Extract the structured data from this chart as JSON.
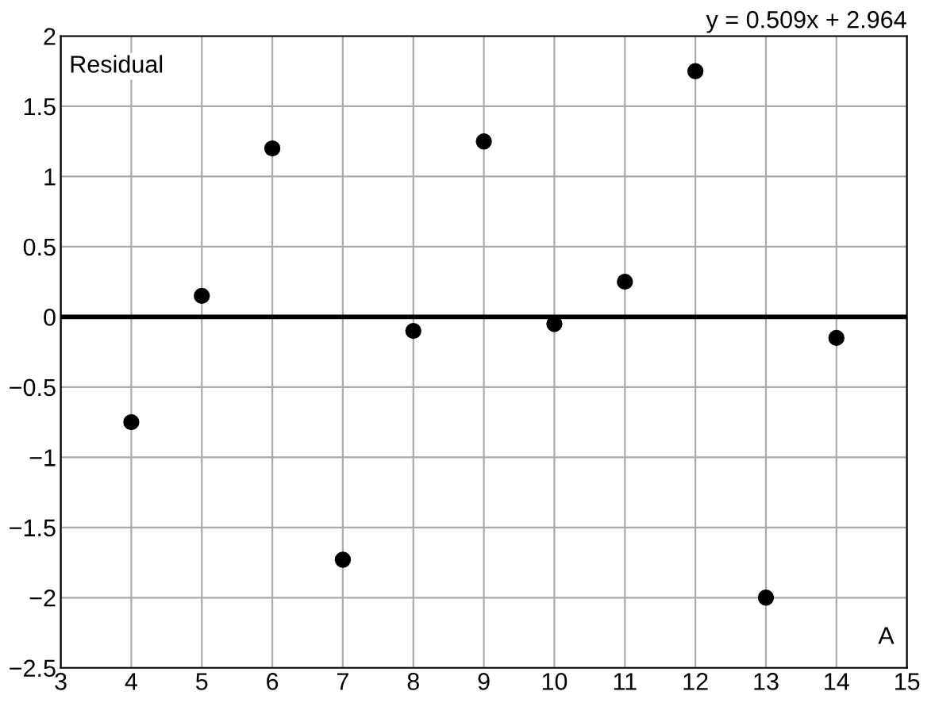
{
  "chart_data": {
    "type": "scatter",
    "xlabel": "A",
    "ylabel": "Residual",
    "annotations": [
      "y = 0.509x + 2.964"
    ],
    "x": [
      4,
      5,
      6,
      7,
      8,
      9,
      10,
      11,
      12,
      13,
      14
    ],
    "series": [
      {
        "color": "#000000",
        "values": [
          -0.75,
          0.15,
          1.2,
          -1.73,
          -0.1,
          1.25,
          -0.05,
          0.25,
          1.75,
          -2.0,
          -0.15
        ]
      }
    ],
    "marker": "circle",
    "xlim": [
      3,
      15
    ],
    "xticks": [
      3,
      4,
      5,
      6,
      7,
      8,
      9,
      10,
      11,
      12,
      13,
      14,
      15
    ],
    "ylim": [
      -2.5,
      2
    ],
    "yticks": [
      {
        "value": -2.5,
        "label": "−2.5"
      },
      {
        "value": -2,
        "label": "−2"
      },
      {
        "value": -1.5,
        "label": "−1.5"
      },
      {
        "value": -1,
        "label": "−1"
      },
      {
        "value": -0.5,
        "label": "−0.5"
      },
      0,
      0.5,
      1,
      1.5,
      2
    ],
    "ref_lines": [
      {
        "axis": "y",
        "value": 0,
        "color": "#000000"
      }
    ],
    "grid": true
  }
}
